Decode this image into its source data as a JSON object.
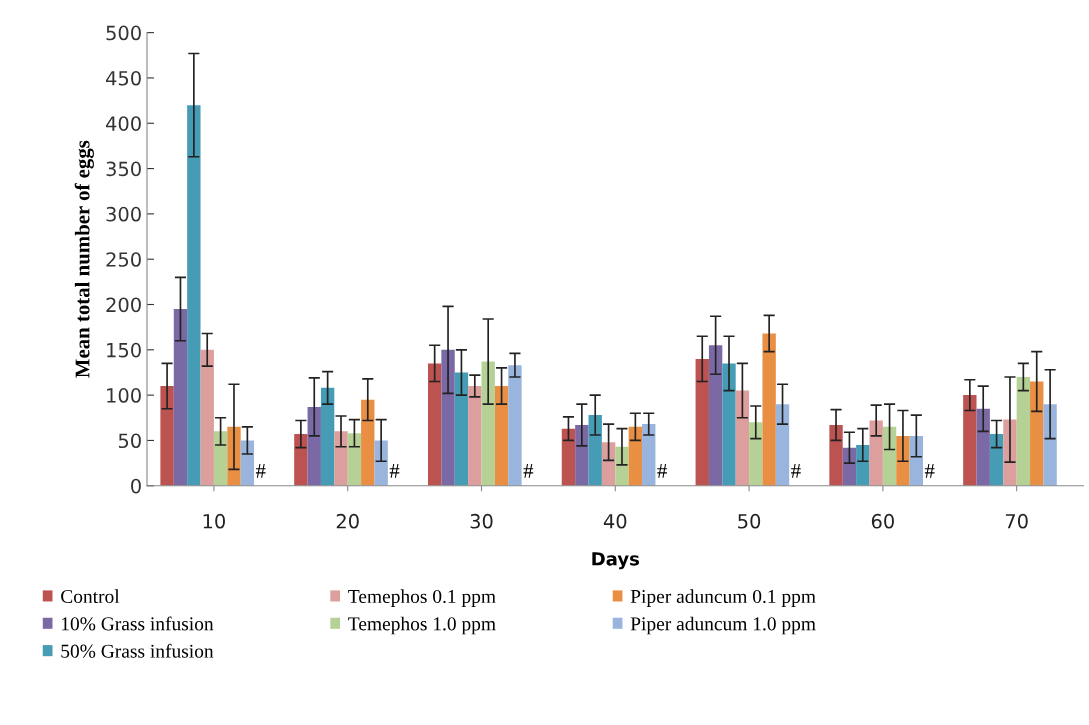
{
  "chart_data": {
    "type": "bar",
    "xlabel": "Days",
    "ylabel": "Mean total number of eggs",
    "categories": [
      "10",
      "20",
      "30",
      "40",
      "50",
      "60",
      "70"
    ],
    "ylim": [
      0,
      500
    ],
    "yticks": [
      0,
      50,
      100,
      150,
      200,
      250,
      300,
      350,
      400,
      450,
      500
    ],
    "grid": false,
    "legend": "bottom",
    "series": [
      {
        "name": "Control",
        "color": "#b94a48",
        "values": [
          110,
          57,
          135,
          63,
          140,
          67,
          100
        ],
        "errors": [
          25,
          15,
          20,
          13,
          25,
          17,
          17
        ]
      },
      {
        "name": "10% Grass infusion",
        "color": "#7461a0",
        "values": [
          195,
          87,
          150,
          67,
          155,
          42,
          85
        ],
        "errors": [
          35,
          32,
          48,
          23,
          32,
          17,
          25
        ]
      },
      {
        "name": "50% Grass infusion",
        "color": "#3b97b0",
        "values": [
          420,
          108,
          125,
          78,
          135,
          45,
          57
        ],
        "errors": [
          57,
          18,
          25,
          22,
          30,
          18,
          15
        ]
      },
      {
        "name": "Temephos 0.1 ppm",
        "color": "#da9a98",
        "values": [
          150,
          60,
          110,
          48,
          105,
          72,
          73
        ],
        "errors": [
          18,
          17,
          12,
          20,
          30,
          17,
          47
        ]
      },
      {
        "name": "Temephos 1.0 ppm",
        "color": "#b2cf8f",
        "values": [
          60,
          58,
          137,
          43,
          70,
          65,
          120
        ],
        "errors": [
          15,
          15,
          47,
          20,
          18,
          25,
          15
        ]
      },
      {
        "name": "Piper aduncum 0.1 ppm",
        "color": "#e8893a",
        "values": [
          65,
          95,
          110,
          65,
          168,
          55,
          115
        ],
        "errors": [
          47,
          23,
          20,
          15,
          20,
          28,
          33
        ]
      },
      {
        "name": "Piper aduncum 1.0 ppm",
        "color": "#93b1dc",
        "values": [
          50,
          50,
          133,
          68,
          90,
          55,
          90
        ],
        "errors": [
          15,
          23,
          13,
          12,
          22,
          23,
          38
        ]
      }
    ],
    "annotations": [
      {
        "text": "#",
        "x": "10",
        "y": 0
      },
      {
        "text": "#",
        "x": "20",
        "y": 0
      },
      {
        "text": "#",
        "x": "30",
        "y": 0
      },
      {
        "text": "#",
        "x": "40",
        "y": 0
      },
      {
        "text": "#",
        "x": "50",
        "y": 0
      },
      {
        "text": "#",
        "x": "60",
        "y": 0
      }
    ]
  }
}
